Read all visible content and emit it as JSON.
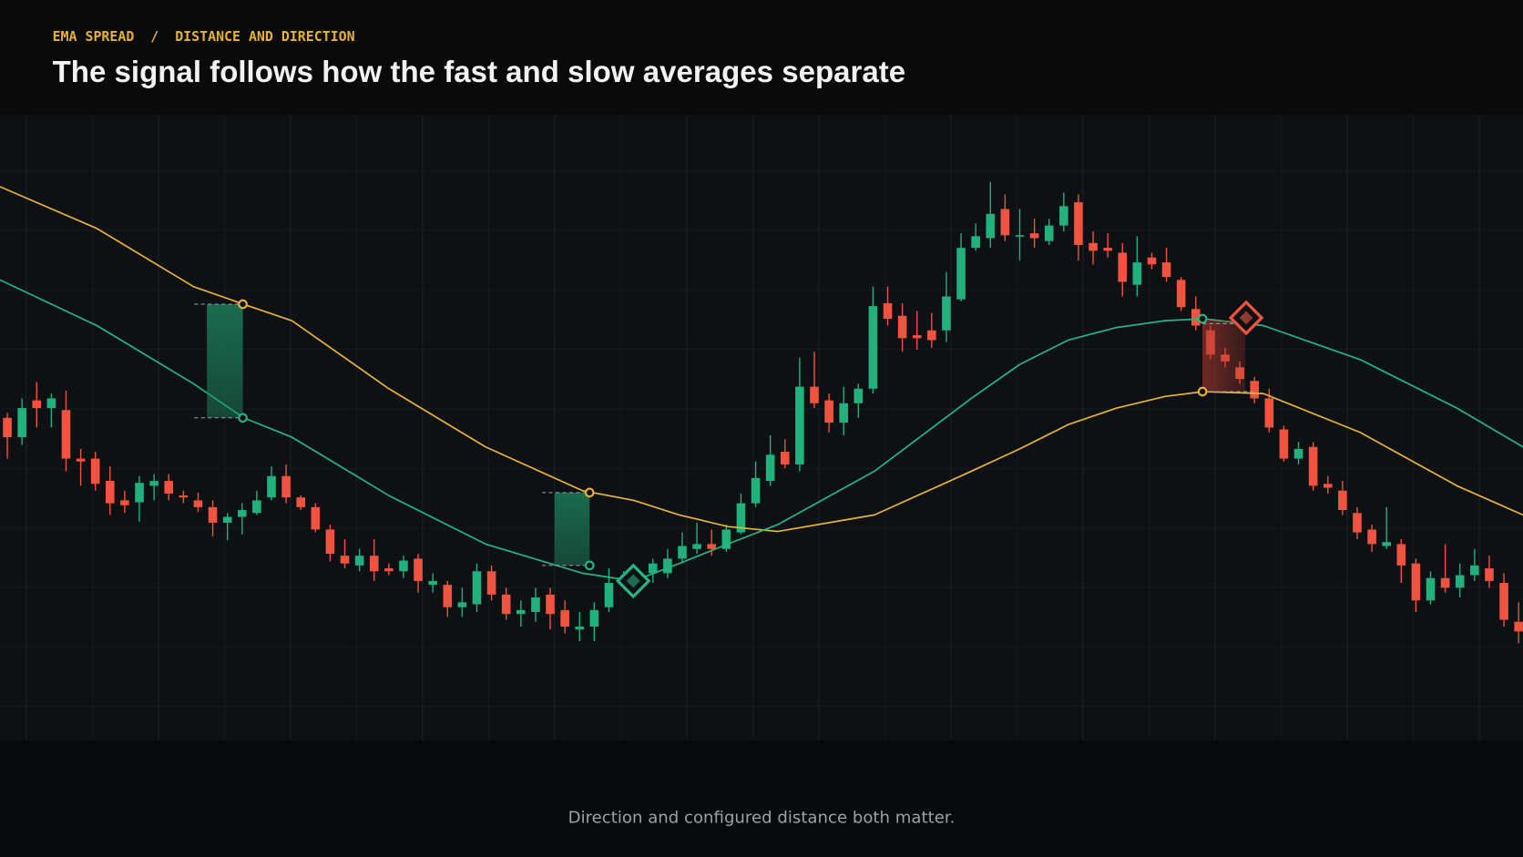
{
  "chart_data": {
    "type": "candlestick",
    "kicker": "EMA SPREAD  /  DISTANCE AND DIRECTION",
    "title": "The signal follows how the fast and slow averages separate",
    "caption": "Direction and configured distance both matter.",
    "up_color": "#22b07d",
    "down_color": "#f0533f",
    "xlim": [
      -0.5,
      103.3
    ],
    "ylim": [
      0,
      642
    ],
    "open": [
      332,
      312,
      350,
      342,
      340,
      290,
      290,
      267,
      247,
      245,
      262,
      267,
      252,
      247,
      240,
      224,
      230,
      234,
      250,
      272,
      250,
      240,
      217,
      190,
      180,
      190,
      177,
      174,
      187,
      160,
      160,
      137,
      140,
      174,
      150,
      130,
      132,
      150,
      134,
      114,
      117,
      137,
      164,
      164,
      172,
      172,
      187,
      197,
      202,
      197,
      214,
      244,
      267,
      297,
      284,
      364,
      350,
      327,
      347,
      362,
      450,
      437,
      417,
      422,
      422,
      454,
      507,
      517,
      547,
      520,
      522,
      514,
      530,
      554,
      512,
      507,
      502,
      469,
      497,
      492,
      474,
      444,
      422,
      397,
      384,
      370,
      352,
      320,
      290,
      302,
      264,
      257,
      234,
      217,
      200,
      202,
      182,
      144,
      167,
      157,
      170,
      177,
      162,
      122
    ],
    "close": [
      312,
      342,
      342,
      352,
      290,
      287,
      264,
      244,
      242,
      265,
      267,
      254,
      250,
      240,
      224,
      230,
      237,
      247,
      272,
      250,
      240,
      217,
      192,
      182,
      190,
      174,
      174,
      185,
      164,
      164,
      137,
      142,
      174,
      150,
      130,
      134,
      147,
      130,
      117,
      117,
      134,
      162,
      164,
      167,
      182,
      187,
      200,
      202,
      197,
      217,
      244,
      270,
      294,
      284,
      364,
      347,
      327,
      347,
      362,
      447,
      434,
      414,
      414,
      412,
      457,
      507,
      519,
      542,
      520,
      520,
      517,
      530,
      550,
      510,
      504,
      504,
      472,
      492,
      490,
      477,
      446,
      427,
      397,
      390,
      372,
      352,
      322,
      290,
      300,
      262,
      260,
      237,
      214,
      202,
      204,
      180,
      144,
      167,
      157,
      170,
      180,
      164,
      124,
      112
    ],
    "high": [
      337,
      352,
      369,
      357,
      360,
      300,
      297,
      282,
      257,
      272,
      274,
      274,
      257,
      255,
      247,
      234,
      244,
      257,
      282,
      284,
      252,
      244,
      222,
      207,
      197,
      207,
      182,
      190,
      192,
      172,
      164,
      157,
      182,
      180,
      157,
      144,
      157,
      157,
      144,
      132,
      142,
      177,
      174,
      172,
      187,
      197,
      214,
      224,
      217,
      222,
      254,
      287,
      314,
      310,
      394,
      400,
      357,
      364,
      367,
      467,
      467,
      450,
      442,
      440,
      482,
      522,
      532,
      575,
      562,
      547,
      537,
      537,
      564,
      562,
      524,
      522,
      512,
      519,
      502,
      507,
      477,
      457,
      427,
      404,
      390,
      374,
      362,
      324,
      307,
      307,
      272,
      267,
      240,
      222,
      240,
      207,
      187,
      174,
      202,
      182,
      197,
      190,
      172,
      142
    ],
    "low": [
      290,
      304,
      322,
      322,
      277,
      262,
      257,
      232,
      234,
      225,
      247,
      247,
      244,
      235,
      210,
      206,
      212,
      232,
      247,
      244,
      237,
      214,
      184,
      177,
      174,
      164,
      170,
      167,
      152,
      152,
      127,
      127,
      132,
      144,
      124,
      117,
      122,
      114,
      110,
      102,
      102,
      132,
      157,
      160,
      162,
      167,
      182,
      192,
      190,
      194,
      212,
      240,
      262,
      280,
      277,
      342,
      317,
      314,
      332,
      357,
      427,
      400,
      402,
      404,
      410,
      452,
      504,
      507,
      514,
      494,
      507,
      510,
      524,
      494,
      490,
      497,
      457,
      457,
      485,
      472,
      442,
      422,
      392,
      384,
      367,
      347,
      317,
      287,
      284,
      257,
      254,
      232,
      207,
      194,
      197,
      162,
      132,
      140,
      152,
      147,
      164,
      157,
      117,
      100
    ],
    "lines": [
      {
        "color": "#e8b13c",
        "x": [
          -0.5,
          6.1,
          12.7,
          16.1,
          19.4,
          26,
          32.6,
          39.2,
          42.7,
          45.8,
          49.1,
          52.5,
          59.1,
          65.7,
          69,
          72.3,
          75.6,
          78.9,
          81.5,
          85.6,
          92.2,
          98.8,
          103.3
        ],
        "values": [
          570,
          527,
          467,
          449,
          432,
          362,
          302,
          257,
          247,
          232,
          220,
          215,
          232,
          277,
          300,
          325,
          342,
          354,
          359,
          357,
          317,
          262,
          232
        ]
      },
      {
        "color": "#25b583",
        "x": [
          -0.5,
          6.1,
          12.7,
          16.1,
          19.4,
          26,
          32.6,
          39.2,
          42.7,
          45.8,
          49.1,
          52.5,
          59.1,
          65.7,
          69,
          72.3,
          75.6,
          78.9,
          81.5,
          85.6,
          92.2,
          98.8,
          103.3
        ],
        "values": [
          474,
          427,
          367,
          332,
          312,
          252,
          202,
          172,
          164,
          182,
          202,
          222,
          277,
          352,
          387,
          412,
          425,
          432,
          434,
          427,
          392,
          342,
          302
        ]
      }
    ]
  }
}
